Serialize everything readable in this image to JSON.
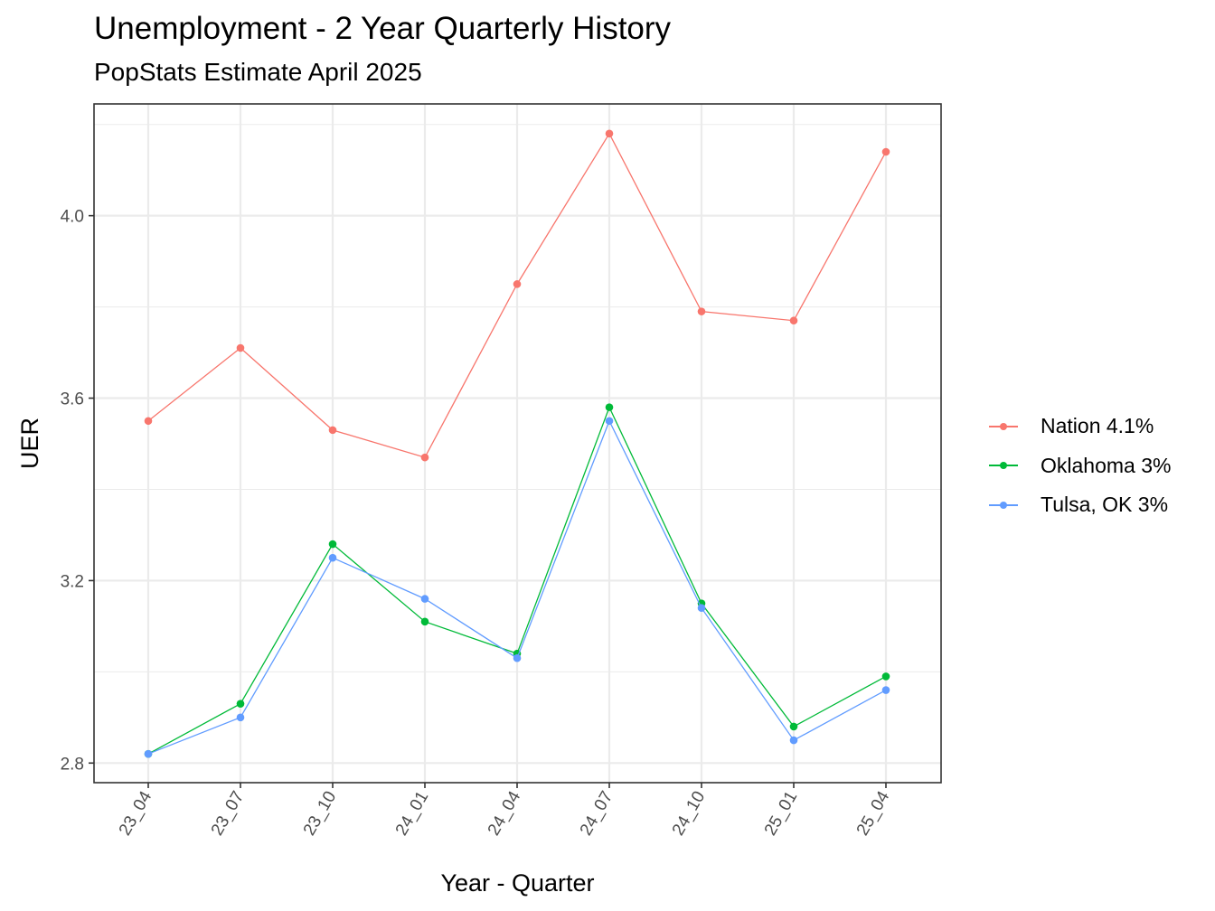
{
  "title": "Unemployment - 2 Year Quarterly History",
  "subtitle": "PopStats Estimate April 2025",
  "chart_data": {
    "type": "line",
    "title": "Unemployment - 2 Year Quarterly History",
    "subtitle": "PopStats Estimate April 2025",
    "xlabel": "Year - Quarter",
    "ylabel": "UER",
    "categories": [
      "23_04",
      "23_07",
      "23_10",
      "24_01",
      "24_04",
      "24_07",
      "24_10",
      "25_01",
      "25_04"
    ],
    "yticks": [
      "2.8",
      "3.2",
      "3.6",
      "4.0"
    ],
    "ylim": [
      2.757,
      4.245
    ],
    "grid": true,
    "legend_position": "right",
    "series": [
      {
        "name": "Nation 4.1%",
        "color": "#F8766D",
        "values": [
          3.55,
          3.71,
          3.53,
          3.47,
          3.85,
          4.18,
          3.79,
          3.77,
          4.14
        ]
      },
      {
        "name": "Oklahoma 3%",
        "color": "#00BA38",
        "values": [
          2.82,
          2.93,
          3.28,
          3.11,
          3.04,
          3.58,
          3.15,
          2.88,
          2.99
        ]
      },
      {
        "name": "Tulsa, OK 3%",
        "color": "#619CFF",
        "values": [
          2.82,
          2.9,
          3.25,
          3.16,
          3.03,
          3.55,
          3.14,
          2.85,
          2.96
        ]
      }
    ]
  }
}
